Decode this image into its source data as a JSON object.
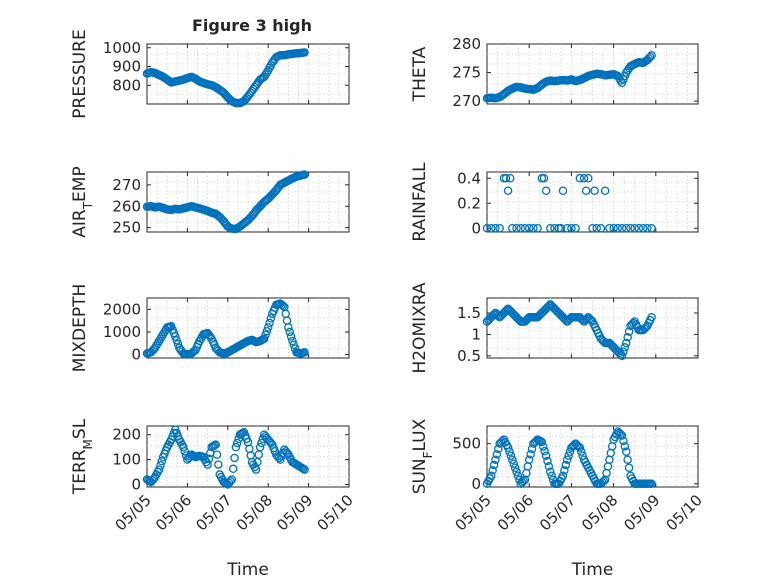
{
  "figure_title": "Figure 3 high",
  "chart_data": [
    {
      "type": "scatter",
      "title": "Figure 3 high",
      "xlabel": "",
      "ylabel": "PRESSURE",
      "xlim": [
        0,
        5
      ],
      "ylim": [
        700,
        1020
      ],
      "yticks": [
        800,
        900,
        1000
      ],
      "x": [
        0,
        0.1,
        0.2,
        0.3,
        0.4,
        0.5,
        0.6,
        0.7,
        0.8,
        0.9,
        1.0,
        1.1,
        1.2,
        1.3,
        1.4,
        1.5,
        1.6,
        1.7,
        1.8,
        1.9,
        2.0,
        2.1,
        2.2,
        2.3,
        2.4,
        2.5,
        2.6,
        2.7,
        2.8,
        2.9,
        3.0,
        3.1,
        3.2,
        3.3,
        3.4,
        3.5,
        3.6,
        3.7,
        3.8,
        3.9
      ],
      "y": [
        862,
        870,
        865,
        855,
        845,
        830,
        815,
        820,
        825,
        830,
        838,
        845,
        835,
        820,
        812,
        805,
        800,
        790,
        775,
        760,
        735,
        715,
        705,
        705,
        715,
        740,
        770,
        800,
        830,
        845,
        880,
        920,
        950,
        960,
        960,
        965,
        968,
        970,
        972,
        975
      ]
    },
    {
      "type": "scatter",
      "title": "",
      "xlabel": "",
      "ylabel": "THETA",
      "xlim": [
        0,
        5
      ],
      "ylim": [
        269.5,
        280
      ],
      "yticks": [
        270,
        275,
        280
      ],
      "x": [
        0,
        0.1,
        0.2,
        0.3,
        0.4,
        0.5,
        0.6,
        0.7,
        0.8,
        0.9,
        1.0,
        1.1,
        1.2,
        1.3,
        1.4,
        1.5,
        1.6,
        1.7,
        1.8,
        1.9,
        2.0,
        2.1,
        2.2,
        2.3,
        2.4,
        2.5,
        2.6,
        2.7,
        2.8,
        2.9,
        3.0,
        3.1,
        3.2,
        3.3,
        3.4,
        3.5,
        3.6,
        3.7,
        3.8,
        3.9
      ],
      "y": [
        270.5,
        270.6,
        270.5,
        270.7,
        271.2,
        271.8,
        272.2,
        272.5,
        272.4,
        272.2,
        272.1,
        272.0,
        272.3,
        272.9,
        273.4,
        273.6,
        273.5,
        273.6,
        273.7,
        273.6,
        273.8,
        273.5,
        273.7,
        274.0,
        274.4,
        274.6,
        274.8,
        274.7,
        274.5,
        274.6,
        274.7,
        274.4,
        273.2,
        275.0,
        276.1,
        276.5,
        276.8,
        276.7,
        277.2,
        278.0
      ]
    },
    {
      "type": "scatter",
      "title": "",
      "xlabel": "",
      "ylabel": "AIR_TEMP",
      "xlim": [
        0,
        5
      ],
      "ylim": [
        248,
        276
      ],
      "yticks": [
        250,
        260,
        270
      ],
      "x": [
        0,
        0.1,
        0.2,
        0.3,
        0.4,
        0.5,
        0.6,
        0.7,
        0.8,
        0.9,
        1.0,
        1.1,
        1.2,
        1.3,
        1.4,
        1.5,
        1.6,
        1.7,
        1.8,
        1.9,
        2.0,
        2.1,
        2.2,
        2.3,
        2.4,
        2.5,
        2.6,
        2.7,
        2.8,
        2.9,
        3.0,
        3.1,
        3.2,
        3.3,
        3.4,
        3.5,
        3.6,
        3.7,
        3.8,
        3.9
      ],
      "y": [
        259.8,
        260.0,
        259.5,
        259.8,
        259.2,
        258.5,
        258.3,
        258.8,
        258.5,
        259.0,
        259.5,
        260.0,
        259.5,
        259.0,
        258.4,
        257.8,
        257.0,
        256.5,
        255.0,
        253.0,
        250.5,
        249.5,
        249.4,
        250.5,
        252.0,
        253.5,
        255.5,
        258.0,
        260.0,
        262.0,
        263.5,
        265.5,
        267.5,
        270.0,
        271.0,
        272.0,
        273.0,
        273.8,
        274.3,
        274.8
      ]
    },
    {
      "type": "scatter",
      "title": "",
      "xlabel": "",
      "ylabel": "RAINFALL",
      "xlim": [
        0,
        5
      ],
      "ylim": [
        -0.03,
        0.45
      ],
      "yticks": [
        0,
        0.2,
        0.4
      ],
      "x": [
        0,
        0.1,
        0.2,
        0.3,
        0.4,
        0.45,
        0.5,
        0.55,
        0.6,
        0.7,
        0.8,
        0.9,
        1.0,
        1.1,
        1.2,
        1.3,
        1.35,
        1.4,
        1.5,
        1.6,
        1.7,
        1.75,
        1.8,
        1.9,
        2.0,
        2.1,
        2.2,
        2.3,
        2.35,
        2.4,
        2.5,
        2.55,
        2.6,
        2.7,
        2.8,
        2.9,
        3.0,
        3.1,
        3.2,
        3.3,
        3.4,
        3.5,
        3.6,
        3.7,
        3.8,
        3.9
      ],
      "y": [
        0,
        0,
        0,
        0,
        0.4,
        0.4,
        0.3,
        0.4,
        0,
        0,
        0,
        0,
        0,
        0,
        0,
        0.4,
        0.4,
        0.3,
        0,
        0,
        0,
        0,
        0.3,
        0,
        0,
        0,
        0.4,
        0.4,
        0.3,
        0.4,
        0,
        0.3,
        0,
        0,
        0.3,
        0,
        0,
        0,
        0,
        0,
        0,
        0,
        0,
        0,
        0,
        0
      ]
    },
    {
      "type": "scatter",
      "title": "",
      "xlabel": "",
      "ylabel": "MIXDEPTH",
      "xlim": [
        0,
        5
      ],
      "ylim": [
        -150,
        2500
      ],
      "yticks": [
        0,
        1000,
        2000
      ],
      "x": [
        0,
        0.1,
        0.2,
        0.3,
        0.4,
        0.5,
        0.6,
        0.7,
        0.8,
        0.9,
        1.0,
        1.1,
        1.2,
        1.3,
        1.4,
        1.5,
        1.6,
        1.7,
        1.8,
        1.9,
        2.0,
        2.1,
        2.2,
        2.3,
        2.4,
        2.5,
        2.6,
        2.7,
        2.8,
        2.9,
        3.0,
        3.1,
        3.2,
        3.3,
        3.4,
        3.5,
        3.6,
        3.7,
        3.8,
        3.9
      ],
      "y": [
        50,
        100,
        300,
        600,
        900,
        1200,
        1250,
        800,
        300,
        50,
        0,
        50,
        200,
        600,
        900,
        950,
        700,
        300,
        100,
        50,
        100,
        200,
        300,
        400,
        500,
        600,
        650,
        550,
        600,
        700,
        1200,
        1800,
        2200,
        2250,
        2100,
        1200,
        600,
        100,
        50,
        100
      ]
    },
    {
      "type": "scatter",
      "title": "",
      "xlabel": "",
      "ylabel": "H2OMIXRA",
      "xlim": [
        0,
        5
      ],
      "ylim": [
        0.45,
        1.85
      ],
      "yticks": [
        0.5,
        1,
        1.5
      ],
      "x": [
        0,
        0.1,
        0.2,
        0.3,
        0.4,
        0.5,
        0.6,
        0.7,
        0.8,
        0.9,
        1.0,
        1.1,
        1.2,
        1.3,
        1.4,
        1.5,
        1.6,
        1.7,
        1.8,
        1.9,
        2.0,
        2.1,
        2.2,
        2.3,
        2.4,
        2.5,
        2.6,
        2.7,
        2.8,
        2.9,
        3.0,
        3.1,
        3.2,
        3.3,
        3.4,
        3.5,
        3.6,
        3.7,
        3.8,
        3.9
      ],
      "y": [
        1.3,
        1.4,
        1.5,
        1.4,
        1.5,
        1.6,
        1.5,
        1.4,
        1.3,
        1.3,
        1.4,
        1.4,
        1.4,
        1.5,
        1.6,
        1.7,
        1.6,
        1.5,
        1.4,
        1.3,
        1.4,
        1.4,
        1.4,
        1.3,
        1.4,
        1.3,
        1.1,
        0.9,
        0.8,
        0.8,
        0.7,
        0.6,
        0.5,
        0.8,
        1.2,
        1.3,
        1.1,
        1.1,
        1.2,
        1.4
      ]
    },
    {
      "type": "scatter",
      "title": "",
      "xlabel": "Time",
      "ylabel": "TERR_MSL",
      "xlim": [
        0,
        5
      ],
      "ylim": [
        -10,
        235
      ],
      "yticks": [
        0,
        100,
        200
      ],
      "xticks": [
        0,
        1,
        2,
        3,
        4,
        5
      ],
      "xticklabels": [
        "05/05",
        "05/06",
        "05/07",
        "05/08",
        "05/09",
        "05/10"
      ],
      "x": [
        0,
        0.1,
        0.2,
        0.3,
        0.4,
        0.5,
        0.6,
        0.7,
        0.8,
        0.9,
        1.0,
        1.1,
        1.2,
        1.3,
        1.4,
        1.5,
        1.6,
        1.7,
        1.8,
        1.9,
        2.0,
        2.1,
        2.2,
        2.3,
        2.4,
        2.5,
        2.6,
        2.7,
        2.8,
        2.9,
        3.0,
        3.1,
        3.2,
        3.3,
        3.4,
        3.5,
        3.6,
        3.7,
        3.8,
        3.9
      ],
      "y": [
        20,
        10,
        30,
        60,
        110,
        150,
        180,
        220,
        180,
        150,
        100,
        120,
        110,
        115,
        110,
        80,
        150,
        160,
        40,
        10,
        0,
        20,
        150,
        200,
        210,
        170,
        90,
        60,
        150,
        200,
        180,
        160,
        120,
        100,
        140,
        120,
        90,
        80,
        70,
        60
      ]
    },
    {
      "type": "scatter",
      "title": "",
      "xlabel": "Time",
      "ylabel": "SUN_FLUX",
      "xlim": [
        0,
        5
      ],
      "ylim": [
        -40,
        720
      ],
      "yticks": [
        0,
        500
      ],
      "xticks": [
        0,
        1,
        2,
        3,
        4,
        5
      ],
      "xticklabels": [
        "05/05",
        "05/06",
        "05/07",
        "05/08",
        "05/09",
        "05/10"
      ],
      "x": [
        0,
        0.1,
        0.2,
        0.3,
        0.4,
        0.5,
        0.6,
        0.7,
        0.8,
        0.9,
        1.0,
        1.1,
        1.2,
        1.3,
        1.4,
        1.5,
        1.6,
        1.7,
        1.8,
        1.9,
        2.0,
        2.1,
        2.2,
        2.3,
        2.4,
        2.5,
        2.6,
        2.7,
        2.8,
        2.9,
        3.0,
        3.1,
        3.2,
        3.3,
        3.4,
        3.5,
        3.6,
        3.7,
        3.8,
        3.9
      ],
      "y": [
        0,
        100,
        300,
        500,
        550,
        450,
        300,
        150,
        0,
        50,
        300,
        500,
        550,
        520,
        350,
        150,
        0,
        0,
        100,
        300,
        450,
        500,
        450,
        300,
        200,
        100,
        0,
        0,
        50,
        300,
        550,
        650,
        600,
        400,
        100,
        0,
        0,
        0,
        0,
        0
      ]
    }
  ],
  "colors": {
    "marker": "#0072bd",
    "axis": "#262626",
    "grid": "#c8c8c8"
  }
}
